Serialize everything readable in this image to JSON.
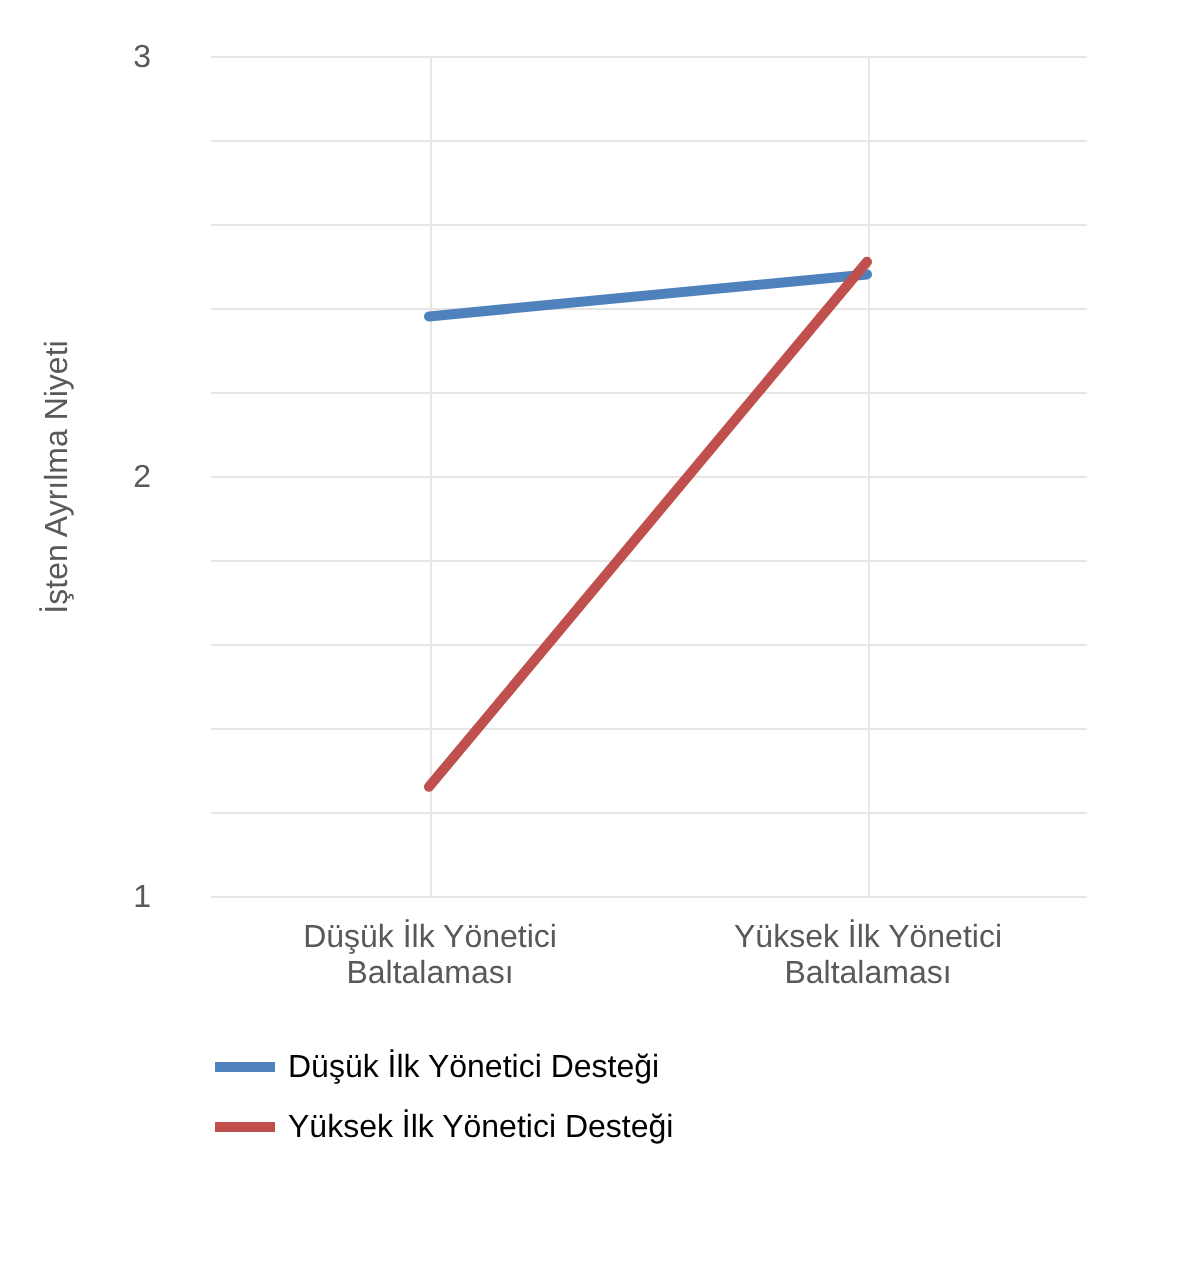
{
  "chart_data": {
    "type": "line",
    "ylabel": "İşten Ayrılma Niyeti",
    "categories": [
      "Düşük İlk Yönetici Baltalaması",
      "Yüksek İlk Yönetici Baltalaması"
    ],
    "series": [
      {
        "name": "Düşük İlk Yönetici Desteği",
        "color": "#4f81bd",
        "values": [
          2.38,
          2.48
        ]
      },
      {
        "name": "Yüksek İlk Yönetici Desteği",
        "color": "#c0504d",
        "values": [
          1.26,
          2.51
        ]
      }
    ],
    "ylim": [
      1,
      3
    ],
    "yticks": [
      1,
      {
        "value": 1.2,
        "label": null
      },
      {
        "value": 1.4,
        "label": null
      },
      {
        "value": 1.6,
        "label": null
      },
      {
        "value": 1.8,
        "label": null
      },
      2,
      {
        "value": 2.2,
        "label": null
      },
      {
        "value": 2.4,
        "label": null
      },
      {
        "value": 2.6,
        "label": null
      },
      {
        "value": 2.8,
        "label": null
      },
      3
    ],
    "grid": true,
    "legend": "bottom",
    "marker": "none",
    "line_style": "solid"
  }
}
